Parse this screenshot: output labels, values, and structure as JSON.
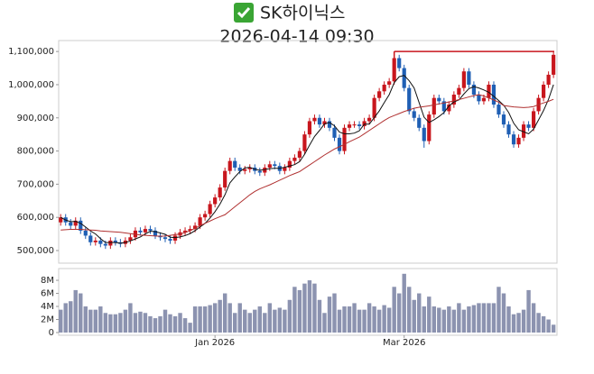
{
  "chart_data": {
    "type": "candlestick",
    "title": "SK하이닉스",
    "subtitle": "2026-04-14 09:30",
    "up_color": "#c8161d",
    "down_color": "#1f5fb4",
    "open": [
      585000,
      600000,
      585000,
      575000,
      590000,
      560000,
      545000,
      525000,
      530000,
      520000,
      515000,
      530000,
      525000,
      520000,
      530000,
      540000,
      560000,
      555000,
      565000,
      560000,
      545000,
      540000,
      535000,
      530000,
      545000,
      555000,
      560000,
      565000,
      575000,
      600000,
      610000,
      640000,
      660000,
      690000,
      740000,
      770000,
      750000,
      740000,
      745000,
      750000,
      740000,
      735000,
      750000,
      760000,
      755000,
      740000,
      750000,
      770000,
      780000,
      800000,
      850000,
      890000,
      900000,
      880000,
      890000,
      870000,
      840000,
      800000,
      870000,
      880000,
      880000,
      875000,
      890000,
      900000,
      960000,
      980000,
      1000000,
      1010000,
      1080000,
      1050000,
      990000,
      920000,
      900000,
      870000,
      830000,
      910000,
      960000,
      950000,
      920000,
      940000,
      970000,
      990000,
      1040000,
      1000000,
      970000,
      950000,
      960000,
      1000000,
      940000,
      910000,
      880000,
      850000,
      820000,
      840000,
      880000,
      870000,
      920000,
      960000,
      1000000,
      1030000
    ],
    "high": [
      610000,
      610000,
      595000,
      600000,
      600000,
      570000,
      555000,
      540000,
      540000,
      530000,
      540000,
      540000,
      535000,
      540000,
      550000,
      570000,
      570000,
      575000,
      575000,
      570000,
      555000,
      550000,
      545000,
      555000,
      565000,
      570000,
      575000,
      585000,
      610000,
      620000,
      650000,
      670000,
      700000,
      750000,
      780000,
      780000,
      760000,
      755000,
      760000,
      760000,
      750000,
      760000,
      770000,
      770000,
      765000,
      760000,
      780000,
      790000,
      810000,
      860000,
      900000,
      910000,
      910000,
      900000,
      900000,
      880000,
      850000,
      880000,
      890000,
      890000,
      890000,
      900000,
      910000,
      970000,
      990000,
      1010000,
      1020000,
      1100000,
      1090000,
      1060000,
      1000000,
      930000,
      910000,
      880000,
      920000,
      970000,
      970000,
      960000,
      950000,
      980000,
      1000000,
      1050000,
      1050000,
      1010000,
      980000,
      970000,
      1010000,
      1010000,
      950000,
      920000,
      890000,
      860000,
      850000,
      890000,
      890000,
      930000,
      970000,
      1010000,
      1040000,
      1100000
    ],
    "low": [
      575000,
      575000,
      565000,
      565000,
      550000,
      535000,
      515000,
      515000,
      510000,
      505000,
      505000,
      515000,
      510000,
      510000,
      520000,
      530000,
      545000,
      545000,
      550000,
      535000,
      530000,
      525000,
      520000,
      520000,
      535000,
      545000,
      550000,
      555000,
      565000,
      590000,
      600000,
      630000,
      650000,
      680000,
      730000,
      740000,
      730000,
      730000,
      735000,
      730000,
      725000,
      725000,
      740000,
      745000,
      730000,
      730000,
      740000,
      760000,
      770000,
      790000,
      840000,
      880000,
      870000,
      870000,
      860000,
      830000,
      790000,
      790000,
      860000,
      870000,
      865000,
      865000,
      880000,
      890000,
      950000,
      970000,
      990000,
      1000000,
      1040000,
      980000,
      910000,
      890000,
      860000,
      810000,
      820000,
      900000,
      940000,
      910000,
      910000,
      930000,
      960000,
      980000,
      990000,
      960000,
      940000,
      940000,
      950000,
      930000,
      900000,
      870000,
      840000,
      810000,
      810000,
      830000,
      860000,
      860000,
      910000,
      950000,
      990000,
      1020000
    ],
    "close": [
      600000,
      585000,
      575000,
      590000,
      560000,
      545000,
      525000,
      530000,
      520000,
      515000,
      530000,
      525000,
      520000,
      530000,
      540000,
      560000,
      555000,
      565000,
      560000,
      545000,
      540000,
      535000,
      530000,
      545000,
      555000,
      560000,
      565000,
      575000,
      600000,
      610000,
      640000,
      660000,
      690000,
      740000,
      770000,
      750000,
      740000,
      745000,
      750000,
      740000,
      735000,
      750000,
      760000,
      755000,
      740000,
      750000,
      770000,
      780000,
      800000,
      850000,
      890000,
      900000,
      880000,
      890000,
      870000,
      840000,
      800000,
      870000,
      880000,
      880000,
      875000,
      890000,
      900000,
      960000,
      980000,
      1000000,
      1010000,
      1080000,
      1050000,
      990000,
      920000,
      900000,
      870000,
      830000,
      910000,
      960000,
      950000,
      920000,
      940000,
      970000,
      990000,
      1040000,
      1000000,
      970000,
      950000,
      960000,
      1000000,
      940000,
      910000,
      880000,
      850000,
      820000,
      840000,
      880000,
      870000,
      920000,
      960000,
      1000000,
      1030000,
      1090000
    ],
    "moving_averages": [
      {
        "color": "#111111",
        "values": [
          600000,
          592000,
          587000,
          588000,
          582000,
          571000,
          559000,
          550000,
          536000,
          524000,
          524000,
          524000,
          522000,
          524000,
          529000,
          535000,
          541000,
          550000,
          558000,
          557000,
          553000,
          549000,
          540000,
          539000,
          541000,
          545000,
          551000,
          560000,
          571000,
          582000,
          598000,
          617000,
          640000,
          668000,
          704000,
          722000,
          738000,
          749000,
          751000,
          745000,
          742000,
          744000,
          747000,
          748000,
          748000,
          751000,
          755000,
          759000,
          768000,
          790000,
          818000,
          844000,
          862000,
          882000,
          886000,
          876000,
          857000,
          852000,
          852000,
          854000,
          861000,
          881000,
          881000,
          901000,
          921000,
          946000,
          970000,
          1006000,
          1024000,
          1028000,
          1012000,
          990000,
          946000,
          902000,
          886000,
          894000,
          904000,
          916000,
          936000,
          948000,
          954000,
          972000,
          988000,
          994000,
          990000,
          984000,
          977000,
          965000,
          952000,
          938000,
          916000,
          884000,
          864000,
          858000,
          852000,
          866000,
          894000,
          922000,
          956000,
          1000000
        ]
      },
      {
        "color": "#b03030",
        "values": [
          562000,
          563000,
          564000,
          564000,
          564000,
          563000,
          562000,
          561000,
          559000,
          558000,
          557000,
          556000,
          555000,
          553000,
          551000,
          549000,
          547000,
          546000,
          545000,
          544000,
          543000,
          544000,
          546000,
          548000,
          550000,
          554000,
          560000,
          567000,
          575000,
          582000,
          589000,
          596000,
          602000,
          608000,
          620000,
          632000,
          644000,
          656000,
          668000,
          678000,
          686000,
          692000,
          698000,
          705000,
          712000,
          719000,
          726000,
          732000,
          738000,
          748000,
          758000,
          768000,
          778000,
          788000,
          797000,
          806000,
          813000,
          820000,
          828000,
          835000,
          842000,
          852000,
          862000,
          872000,
          882000,
          892000,
          901000,
          907000,
          913000,
          919000,
          924000,
          929000,
          932000,
          934000,
          936000,
          939000,
          942000,
          945000,
          948000,
          951000,
          955000,
          959000,
          963000,
          967000,
          970000,
          966000,
          960000,
          954000,
          947000,
          937000,
          935000,
          933000,
          932000,
          931000,
          932000,
          934000,
          940000,
          945000,
          950000,
          956000
        ]
      }
    ],
    "max_line": {
      "value": 1100000,
      "start": 67,
      "color": "#c8161d"
    },
    "ylim": [
      462000,
      1133000
    ],
    "yticks": [
      {
        "value": 500000,
        "label": "500,000"
      },
      {
        "value": 600000,
        "label": "600,000"
      },
      {
        "value": 700000,
        "label": "700,000"
      },
      {
        "value": 800000,
        "label": "800,000"
      },
      {
        "value": 900000,
        "label": "900,000"
      },
      {
        "value": 1000000,
        "label": "1,000,000"
      },
      {
        "value": 1100000,
        "label": "1,100,000"
      }
    ],
    "xlim": [
      -0.4,
      99.7
    ],
    "xticks": [
      {
        "value": 31,
        "label": "Jan 2026"
      },
      {
        "value": 69,
        "label": "Mar 2026"
      }
    ],
    "volume": {
      "type": "bar",
      "color": "#8c93b0",
      "values": [
        3500000,
        4500000,
        4800000,
        6500000,
        6000000,
        4000000,
        3500000,
        3500000,
        4000000,
        3000000,
        2800000,
        2800000,
        3000000,
        3500000,
        4500000,
        3000000,
        3200000,
        3000000,
        2500000,
        2200000,
        2500000,
        3500000,
        2800000,
        2500000,
        3000000,
        2200000,
        1500000,
        4000000,
        4000000,
        4000000,
        4200000,
        4500000,
        5000000,
        6000000,
        4500000,
        3000000,
        4500000,
        3500000,
        3000000,
        3500000,
        4000000,
        3000000,
        4500000,
        3500000,
        3800000,
        3500000,
        5000000,
        7000000,
        6500000,
        7500000,
        8000000,
        7500000,
        5000000,
        3000000,
        5500000,
        6000000,
        3500000,
        4000000,
        4000000,
        4500000,
        3500000,
        3500000,
        4500000,
        4000000,
        3500000,
        4200000,
        3800000,
        7000000,
        6000000,
        9000000,
        7000000,
        5000000,
        6000000,
        4000000,
        5500000,
        4000000,
        3800000,
        3500000,
        4000000,
        3500000,
        4500000,
        3500000,
        4000000,
        4200000,
        4500000,
        4500000,
        4500000,
        4500000,
        7000000,
        6000000,
        4000000,
        2800000,
        3000000,
        3500000,
        6500000,
        4500000,
        3000000,
        2500000,
        2000000,
        1200000
      ],
      "ylim": [
        0,
        9800000
      ],
      "yticks": [
        0,
        {
          "value": 2000000,
          "label": "2M"
        },
        {
          "value": 4000000,
          "label": "4M"
        },
        {
          "value": 6000000,
          "label": "6M"
        },
        {
          "value": 8000000,
          "label": "8M"
        }
      ]
    }
  }
}
